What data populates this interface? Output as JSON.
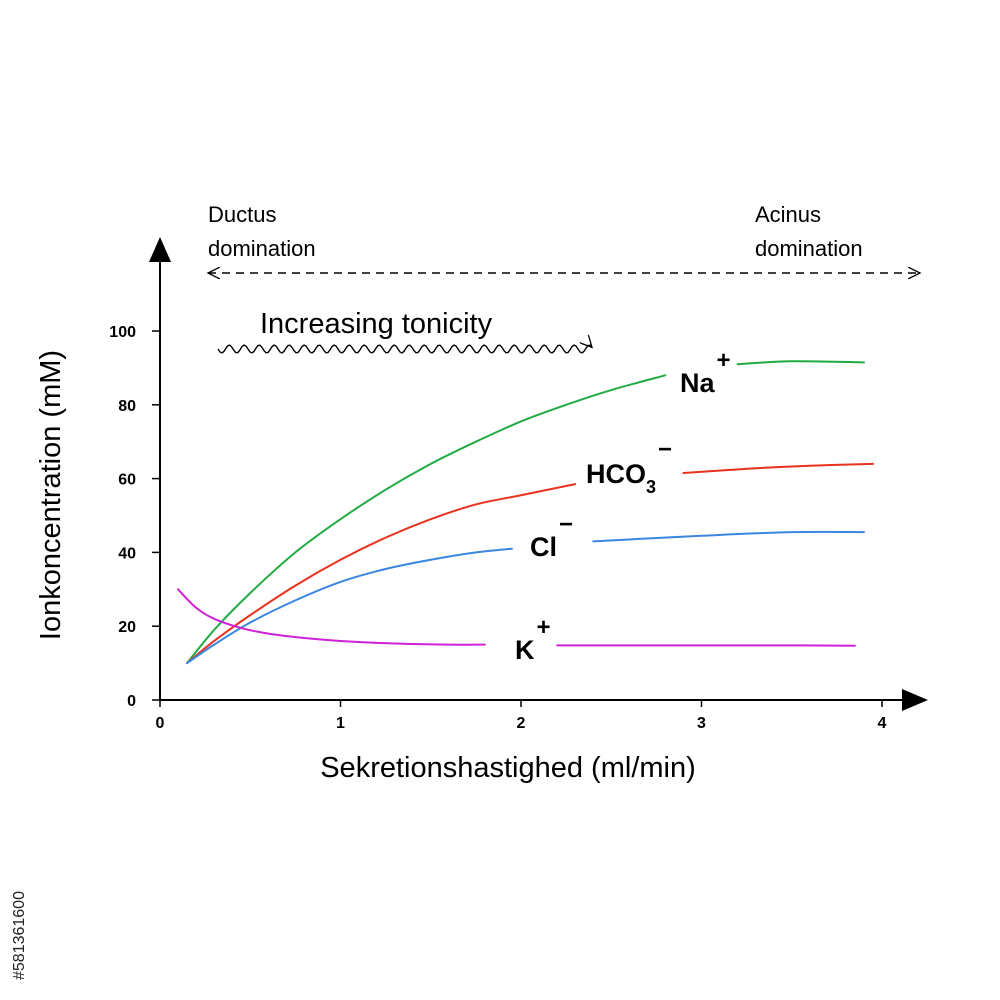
{
  "chart_data": {
    "type": "line",
    "title": "",
    "xlabel": "Sekretionshastighed (ml/min)",
    "ylabel": "Ionkoncentration (mM)",
    "xlim": [
      0,
      4.2
    ],
    "ylim": [
      0,
      110
    ],
    "x_ticks": [
      "0",
      "1",
      "2",
      "3",
      "4"
    ],
    "y_ticks": [
      "0",
      "20",
      "40",
      "60",
      "80",
      "100"
    ],
    "grid": false,
    "legend": "none (inline labels)",
    "series": [
      {
        "key": "na",
        "label_main": "Na",
        "label_sub": "",
        "label_sup": "+",
        "color": "#22aa44",
        "x": [
          0.15,
          0.3,
          0.5,
          0.75,
          1.0,
          1.25,
          1.5,
          1.75,
          2.0,
          2.25,
          2.5,
          2.8,
          3.2,
          3.5,
          3.9
        ],
        "y": [
          10,
          19,
          29,
          40,
          49,
          57,
          64,
          70,
          75.5,
          80,
          84,
          88,
          91,
          91.8,
          91.5
        ]
      },
      {
        "key": "hco3",
        "label_main": "HCO",
        "label_sub": "3",
        "label_sup": "−",
        "color": "#e8321e",
        "x": [
          0.15,
          0.3,
          0.5,
          0.75,
          1.0,
          1.25,
          1.5,
          1.75,
          2.0,
          2.3,
          2.9,
          3.3,
          3.6,
          3.95
        ],
        "y": [
          10,
          16,
          23,
          31,
          38,
          44,
          49,
          53,
          55.5,
          58.5,
          61.5,
          62.8,
          63.5,
          64
        ]
      },
      {
        "key": "cl",
        "label_main": "Cl",
        "label_sub": "",
        "label_sup": "−",
        "color": "#3a86e0",
        "x": [
          0.15,
          0.3,
          0.5,
          0.75,
          1.0,
          1.25,
          1.5,
          1.75,
          1.95,
          2.4,
          3.0,
          3.5,
          3.9
        ],
        "y": [
          10,
          15,
          21,
          27,
          32,
          35.5,
          38,
          40,
          41,
          43,
          44.5,
          45.5,
          45.5
        ]
      },
      {
        "key": "k",
        "label_main": "K",
        "label_sub": "",
        "label_sup": "+",
        "color": "#d020d8",
        "x": [
          0.1,
          0.2,
          0.3,
          0.45,
          0.6,
          0.8,
          1.0,
          1.3,
          1.6,
          1.8,
          2.2,
          3.0,
          3.5,
          3.85
        ],
        "y": [
          30,
          25,
          22,
          19.5,
          18,
          16.8,
          16,
          15.3,
          15,
          15,
          14.8,
          14.8,
          14.8,
          14.7
        ]
      }
    ],
    "annotations": {
      "ductus": "Ductus\ndomination",
      "acinus": "Acinus\ndomination",
      "tonicity": "Increasing tonicity"
    }
  },
  "watermark": "#581361600"
}
